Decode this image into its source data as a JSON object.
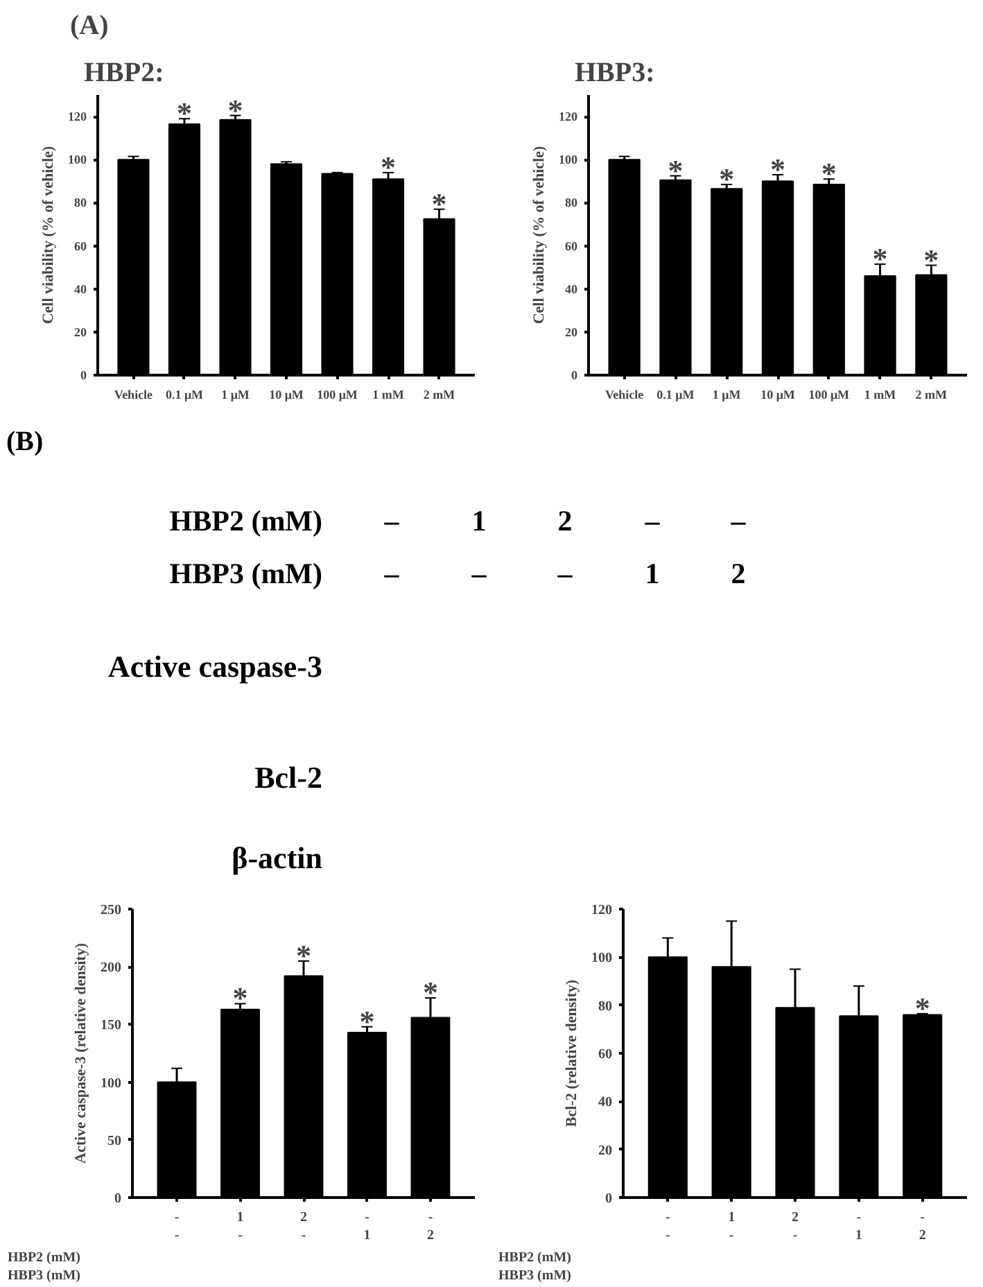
{
  "chart_data": [
    {
      "type": "bar",
      "title": "HBP2:",
      "ylabel": "Cell viability (% of vehicle)",
      "categories": [
        "Vehicle",
        "0.1 μM",
        "1 μM",
        "10 μM",
        "100 μM",
        "1 mM",
        "2 mM"
      ],
      "values": [
        100,
        116.5,
        118.5,
        98,
        93.5,
        91,
        72.5
      ],
      "errors": [
        1.5,
        2.5,
        2,
        1,
        0.5,
        3,
        4.5
      ],
      "color": "#000000",
      "ylim": [
        0,
        130
      ],
      "yticks": [
        0,
        20,
        40,
        60,
        80,
        100,
        120
      ],
      "annotations": [
        "(A)",
        {
          "text": "*",
          "x": "0.1 μM",
          "y": 119
        },
        {
          "text": "*",
          "x": "1 μM",
          "y": 120.5
        },
        {
          "text": "*",
          "x": "1 mM",
          "y": 94
        },
        {
          "text": "*",
          "x": "2 mM",
          "y": 77
        }
      ]
    },
    {
      "type": "bar",
      "title": "HBP3:",
      "ylabel": "Cell viability (% of vehicle)",
      "categories": [
        "Vehicle",
        "0.1 μM",
        "1 μM",
        "10 μM",
        "100 μM",
        "1 mM",
        "2 mM"
      ],
      "values": [
        100,
        90.5,
        86.5,
        90,
        88.5,
        46,
        46.5
      ],
      "errors": [
        1.5,
        2,
        2,
        3,
        2.5,
        5.5,
        4.5
      ],
      "color": "#000000",
      "ylim": [
        0,
        130
      ],
      "yticks": [
        0,
        20,
        40,
        60,
        80,
        100,
        120
      ],
      "annotations": [
        {
          "text": "*",
          "x": "0.1 μM",
          "y": 92.5
        },
        {
          "text": "*",
          "x": "1 μM",
          "y": 88.5
        },
        {
          "text": "*",
          "x": "10 μM",
          "y": 93
        },
        {
          "text": "*",
          "x": "100 μM",
          "y": 91
        },
        {
          "text": "*",
          "x": "1 mM",
          "y": 51.5
        },
        {
          "text": "*",
          "x": "2 mM",
          "y": 51
        }
      ]
    },
    {
      "type": "other",
      "title": "(B)",
      "annotations": [
        "HBP2 (mM)",
        "–",
        "1",
        "2",
        "–",
        "–",
        "HBP3 (mM)",
        "–",
        "–",
        "–",
        "1",
        "2",
        "Active caspase-3",
        "Bcl-2",
        "β-actin"
      ]
    },
    {
      "type": "bar",
      "ylabel": "Active caspase-3 (relative density)",
      "categories": [
        "-\n-",
        "1\n-",
        "2\n-",
        "-\n1",
        "-\n2"
      ],
      "values": [
        100,
        163,
        192,
        143,
        156
      ],
      "errors": [
        12,
        5,
        13,
        5,
        17
      ],
      "color": "#000000",
      "ylim": [
        0,
        250
      ],
      "yticks": [
        0,
        50,
        100,
        150,
        200,
        250
      ],
      "annotations": [
        "HBP2 (mM)",
        "HBP3 (mM)",
        {
          "text": "*",
          "x": "1\n-",
          "y": 168
        },
        {
          "text": "*",
          "x": "2\n-",
          "y": 205
        },
        {
          "text": "*",
          "x": "-\n1",
          "y": 148
        },
        {
          "text": "*",
          "x": "-\n2",
          "y": 173
        }
      ]
    },
    {
      "type": "bar",
      "ylabel": "Bcl-2 (relative density)",
      "categories": [
        "-\n-",
        "1\n-",
        "2\n-",
        "-\n1",
        "-\n2"
      ],
      "values": [
        100,
        96,
        79,
        75.5,
        76
      ],
      "errors": [
        8,
        19,
        16,
        12.5,
        0.5
      ],
      "color": "#000000",
      "ylim": [
        0,
        120
      ],
      "yticks": [
        0,
        20,
        40,
        60,
        80,
        100,
        120
      ],
      "annotations": [
        "HBP2 (mM)",
        "HBP3 (mM)",
        {
          "text": "*",
          "x": "-\n2",
          "y": 76.5
        }
      ]
    }
  ]
}
